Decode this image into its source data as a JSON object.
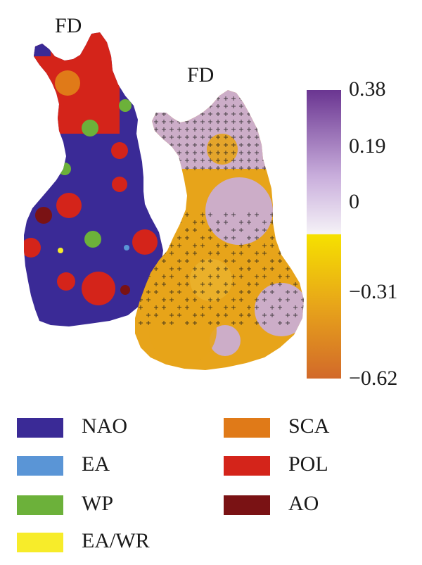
{
  "maps": {
    "left_title": "FD",
    "right_title": "FD"
  },
  "colorbar": {
    "ticks": [
      {
        "key": "t1",
        "label": "0.38",
        "value": 0.38
      },
      {
        "key": "t2",
        "label": "0.19",
        "value": 0.19
      },
      {
        "key": "t3",
        "label": "0",
        "value": 0
      },
      {
        "key": "t4",
        "label": "−0.31",
        "value": -0.31
      },
      {
        "key": "t5",
        "label": "−0.62",
        "value": -0.62
      }
    ],
    "colors": {
      "max": "#6a3591",
      "mid_positive": "#c9aedc",
      "zero_above": "#f5f2f7",
      "zero_below": "#f6e100",
      "mid_negative": "#e7a41a",
      "min": "#d2692a"
    }
  },
  "legend": {
    "items": [
      {
        "label": "NAO",
        "color": "#3a2a96"
      },
      {
        "label": "EA",
        "color": "#5a95d6"
      },
      {
        "label": "WP",
        "color": "#6cb13a"
      },
      {
        "label": "EA/WR",
        "color": "#f7ec2a"
      },
      {
        "label": "SCA",
        "color": "#e07a18"
      },
      {
        "label": "POL",
        "color": "#d4241a"
      },
      {
        "label": "AO",
        "color": "#7a1214"
      }
    ]
  }
}
